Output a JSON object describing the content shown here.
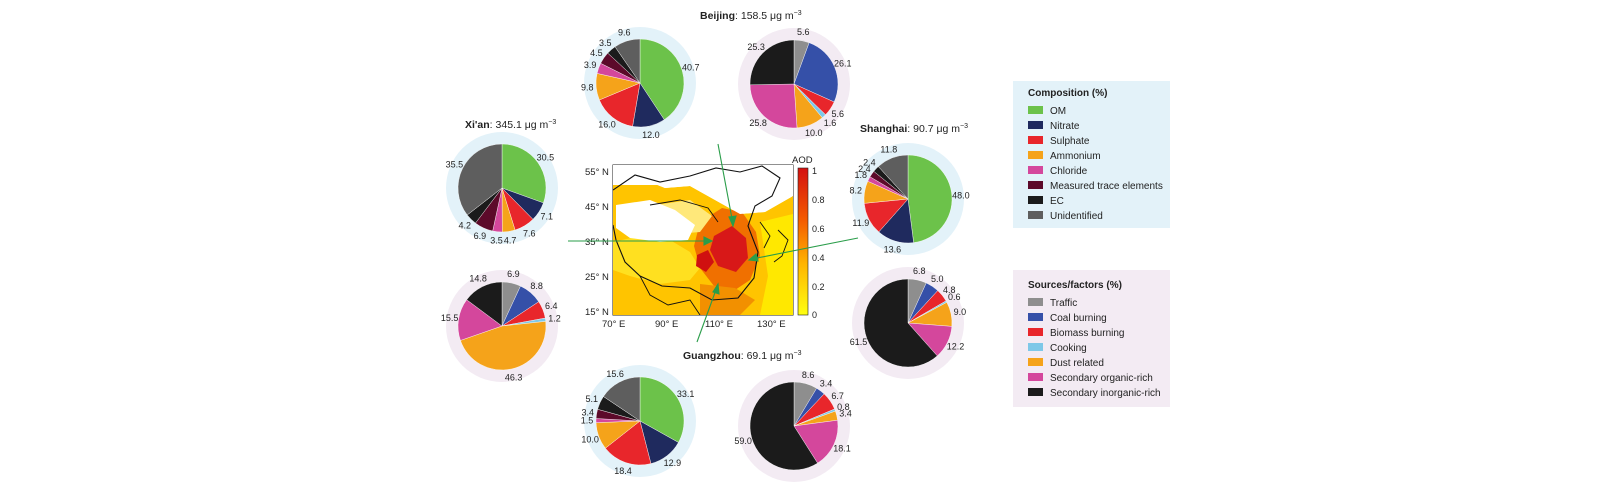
{
  "cities": [
    {
      "id": "beijing",
      "name": "Beijing",
      "value": "158.5 μg m"
    },
    {
      "id": "xian",
      "name": "Xi'an",
      "value": "345.1 μg m"
    },
    {
      "id": "shanghai",
      "name": "Shanghai",
      "value": "90.7 μg m"
    },
    {
      "id": "guangzhou",
      "name": "Guangzhou",
      "value": "69.1 μg m"
    }
  ],
  "unit_exponent": "−3",
  "composition_legend": {
    "title": "Composition (%)",
    "items": [
      {
        "label": "OM",
        "color": "#6cc24a"
      },
      {
        "label": "Nitrate",
        "color": "#1f2a5e"
      },
      {
        "label": "Sulphate",
        "color": "#e8262b"
      },
      {
        "label": "Ammonium",
        "color": "#f5a31a"
      },
      {
        "label": "Chloride",
        "color": "#d4479c"
      },
      {
        "label": "Measured trace elements",
        "color": "#5c0a2a"
      },
      {
        "label": "EC",
        "color": "#1b1b1b"
      },
      {
        "label": "Unidentified",
        "color": "#5e5e5e"
      }
    ]
  },
  "sources_legend": {
    "title": "Sources/factors (%)",
    "items": [
      {
        "label": "Traffic",
        "color": "#8e8e8e"
      },
      {
        "label": "Coal burning",
        "color": "#3550a8"
      },
      {
        "label": "Biomass burning",
        "color": "#e8262b"
      },
      {
        "label": "Cooking",
        "color": "#7ec8e8"
      },
      {
        "label": "Dust related",
        "color": "#f5a31a"
      },
      {
        "label": "Secondary organic-rich",
        "color": "#d4479c"
      },
      {
        "label": "Secondary inorganic-rich",
        "color": "#1b1b1b"
      }
    ]
  },
  "map": {
    "colorbar_title": "AOD",
    "colorbar_ticks": [
      "1",
      "0.8",
      "0.6",
      "0.4",
      "0.2",
      "0"
    ],
    "lat_labels": [
      "55° N",
      "45° N",
      "35° N",
      "25° N",
      "15° N"
    ],
    "lon_labels": [
      "70° E",
      "90° E",
      "110° E",
      "130° E"
    ]
  },
  "chart_data": [
    {
      "type": "pie",
      "city": "Beijing",
      "kind": "composition",
      "labels": [
        "OM",
        "Nitrate",
        "Sulphate",
        "Ammonium",
        "Chloride",
        "Measured trace elements",
        "EC",
        "Unidentified"
      ],
      "values": [
        40.7,
        12.0,
        16.0,
        9.8,
        3.9,
        4.5,
        3.5,
        9.6
      ]
    },
    {
      "type": "pie",
      "city": "Beijing",
      "kind": "sources",
      "labels": [
        "Traffic",
        "Coal burning",
        "Biomass burning",
        "Cooking",
        "Dust related",
        "Secondary organic-rich",
        "Secondary inorganic-rich"
      ],
      "values": [
        5.6,
        26.1,
        5.6,
        1.6,
        10.0,
        25.8,
        25.3
      ]
    },
    {
      "type": "pie",
      "city": "Xi'an",
      "kind": "composition",
      "labels": [
        "OM",
        "Nitrate",
        "Sulphate",
        "Ammonium",
        "Chloride",
        "Measured trace elements",
        "EC",
        "Unidentified"
      ],
      "values": [
        30.5,
        7.1,
        7.6,
        4.7,
        3.5,
        6.9,
        4.2,
        35.5
      ]
    },
    {
      "type": "pie",
      "city": "Xi'an",
      "kind": "sources",
      "labels": [
        "Traffic",
        "Coal burning",
        "Biomass burning",
        "Cooking",
        "Dust related",
        "Secondary organic-rich",
        "Secondary inorganic-rich"
      ],
      "values": [
        6.9,
        8.8,
        6.4,
        1.2,
        46.3,
        15.5,
        14.8
      ]
    },
    {
      "type": "pie",
      "city": "Shanghai",
      "kind": "composition",
      "labels": [
        "OM",
        "Nitrate",
        "Sulphate",
        "Ammonium",
        "Chloride",
        "Measured trace elements",
        "EC",
        "Unidentified"
      ],
      "values": [
        48.0,
        13.6,
        11.9,
        8.2,
        1.8,
        2.4,
        2.4,
        11.8
      ]
    },
    {
      "type": "pie",
      "city": "Shanghai",
      "kind": "sources",
      "labels": [
        "Traffic",
        "Coal burning",
        "Biomass burning",
        "Cooking",
        "Dust related",
        "Secondary organic-rich",
        "Secondary inorganic-rich"
      ],
      "values": [
        6.8,
        5.0,
        4.8,
        0.6,
        9.0,
        12.2,
        61.5
      ]
    },
    {
      "type": "pie",
      "city": "Guangzhou",
      "kind": "composition",
      "labels": [
        "OM",
        "Nitrate",
        "Sulphate",
        "Ammonium",
        "Chloride",
        "Measured trace elements",
        "EC",
        "Unidentified"
      ],
      "values": [
        33.1,
        12.9,
        18.4,
        10.0,
        1.5,
        3.4,
        5.1,
        15.6
      ]
    },
    {
      "type": "pie",
      "city": "Guangzhou",
      "kind": "sources",
      "labels": [
        "Traffic",
        "Coal burning",
        "Biomass burning",
        "Cooking",
        "Dust related",
        "Secondary organic-rich",
        "Secondary inorganic-rich"
      ],
      "values": [
        8.6,
        3.4,
        6.7,
        0.8,
        3.4,
        18.1,
        59.0
      ]
    }
  ]
}
